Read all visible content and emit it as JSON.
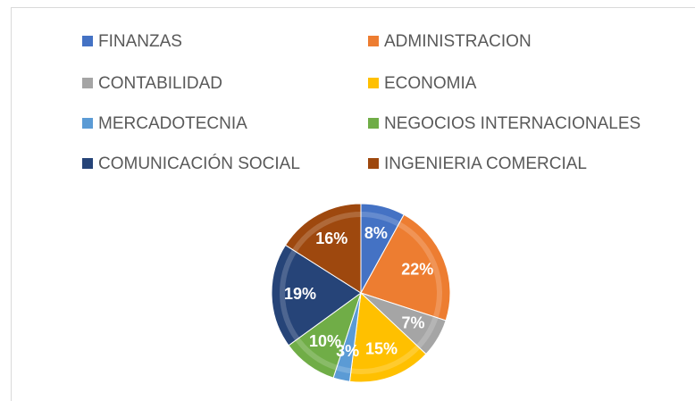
{
  "chart_data": {
    "type": "pie",
    "categories": [
      "FINANZAS",
      "ADMINISTRACION",
      "CONTABILIDAD",
      "ECONOMIA",
      "MERCADOTECNIA",
      "NEGOCIOS INTERNACIONALES",
      "COMUNICACIÓN SOCIAL",
      "INGENIERIA COMERCIAL"
    ],
    "values": [
      8,
      22,
      7,
      15,
      3,
      10,
      19,
      16
    ],
    "value_labels": [
      "8%",
      "22%",
      "7%",
      "15%",
      "3%",
      "10%",
      "19%",
      "16%"
    ],
    "colors": [
      "#4472c4",
      "#ed7d31",
      "#a5a5a5",
      "#ffc000",
      "#5b9bd5",
      "#70ad47",
      "#264478",
      "#9e480e"
    ],
    "legend": "top"
  }
}
